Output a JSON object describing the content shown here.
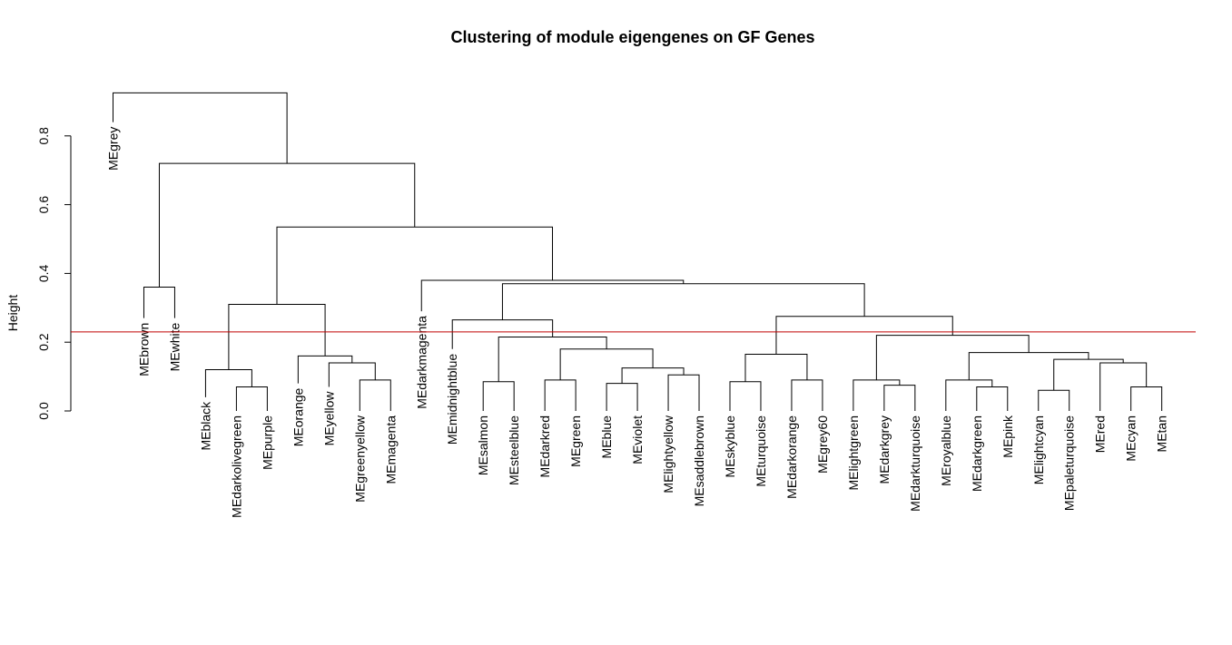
{
  "chart_data": {
    "type": "dendrogram",
    "title": "Clustering of module eigengenes on GF Genes",
    "ylabel": "Height",
    "xlabel": "",
    "ylim": [
      0,
      0.95
    ],
    "yticks": [
      0.0,
      0.2,
      0.4,
      0.6,
      0.8
    ],
    "ytick_labels": [
      "0.0",
      "0.2",
      "0.4",
      "0.6",
      "0.8"
    ],
    "cut_height": 0.23,
    "cut_color": "#c00000",
    "leaves": [
      {
        "label": "MEgrey",
        "h": 0.84
      },
      {
        "label": "MEbrown",
        "h": 0.27
      },
      {
        "label": "MEwhite",
        "h": 0.27
      },
      {
        "label": "MEblack",
        "h": 0.04
      },
      {
        "label": "MEdarkolivegreen",
        "h": 0.0
      },
      {
        "label": "MEpurple",
        "h": 0.0
      },
      {
        "label": "MEorange",
        "h": 0.08
      },
      {
        "label": "MEyellow",
        "h": 0.07
      },
      {
        "label": "MEgreenyellow",
        "h": 0.0
      },
      {
        "label": "MEmagenta",
        "h": 0.0
      },
      {
        "label": "MEdarkmagenta",
        "h": 0.29
      },
      {
        "label": "MEmidnightblue",
        "h": 0.18
      },
      {
        "label": "MEsalmon",
        "h": 0.0
      },
      {
        "label": "MEsteelblue",
        "h": 0.0
      },
      {
        "label": "MEdarkred",
        "h": 0.0
      },
      {
        "label": "MEgreen",
        "h": 0.0
      },
      {
        "label": "MEblue",
        "h": 0.0
      },
      {
        "label": "MEviolet",
        "h": 0.0
      },
      {
        "label": "MElightyellow",
        "h": 0.0
      },
      {
        "label": "MEsaddlebrown",
        "h": 0.0
      },
      {
        "label": "MEskyblue",
        "h": 0.0
      },
      {
        "label": "MEturquoise",
        "h": 0.0
      },
      {
        "label": "MEdarkorange",
        "h": 0.0
      },
      {
        "label": "MEgrey60",
        "h": 0.0
      },
      {
        "label": "MElightgreen",
        "h": 0.0
      },
      {
        "label": "MEdarkgrey",
        "h": 0.0
      },
      {
        "label": "MEdarkturquoise",
        "h": 0.0
      },
      {
        "label": "MEroyalblue",
        "h": 0.0
      },
      {
        "label": "MEdarkgreen",
        "h": 0.0
      },
      {
        "label": "MEpink",
        "h": 0.0
      },
      {
        "label": "MElightcyan",
        "h": 0.0
      },
      {
        "label": "MEpaleturquoise",
        "h": 0.0
      },
      {
        "label": "MEred",
        "h": 0.0
      },
      {
        "label": "MEcyan",
        "h": 0.0
      },
      {
        "label": "MEtan",
        "h": 0.0
      }
    ],
    "merges": [
      [
        5,
        6,
        0.07
      ],
      [
        4,
        -1,
        0.12
      ],
      [
        9,
        10,
        0.09
      ],
      [
        8,
        -3,
        0.14
      ],
      [
        7,
        -4,
        0.16
      ],
      [
        -2,
        -5,
        0.31
      ],
      [
        13,
        14,
        0.085
      ],
      [
        15,
        16,
        0.09
      ],
      [
        17,
        18,
        0.08
      ],
      [
        19,
        20,
        0.105
      ],
      [
        -9,
        -10,
        0.125
      ],
      [
        -8,
        -11,
        0.18
      ],
      [
        -12,
        -7,
        0.215
      ],
      [
        12,
        -13,
        0.265
      ],
      [
        21,
        22,
        0.085
      ],
      [
        23,
        24,
        0.09
      ],
      [
        -15,
        -16,
        0.165
      ],
      [
        26,
        27,
        0.075
      ],
      [
        25,
        -18,
        0.09
      ],
      [
        29,
        30,
        0.07
      ],
      [
        28,
        -20,
        0.09
      ],
      [
        34,
        35,
        0.07
      ],
      [
        33,
        -22,
        0.14
      ],
      [
        31,
        32,
        0.06
      ],
      [
        -24,
        -23,
        0.15
      ],
      [
        -21,
        -25,
        0.17
      ],
      [
        -19,
        -26,
        0.22
      ],
      [
        -17,
        -27,
        0.275
      ],
      [
        -14,
        -28,
        0.37
      ],
      [
        11,
        -29,
        0.38
      ],
      [
        -6,
        -30,
        0.535
      ],
      [
        2,
        3,
        0.36
      ],
      [
        -32,
        -31,
        0.72
      ],
      [
        1,
        -33,
        0.925
      ]
    ]
  }
}
